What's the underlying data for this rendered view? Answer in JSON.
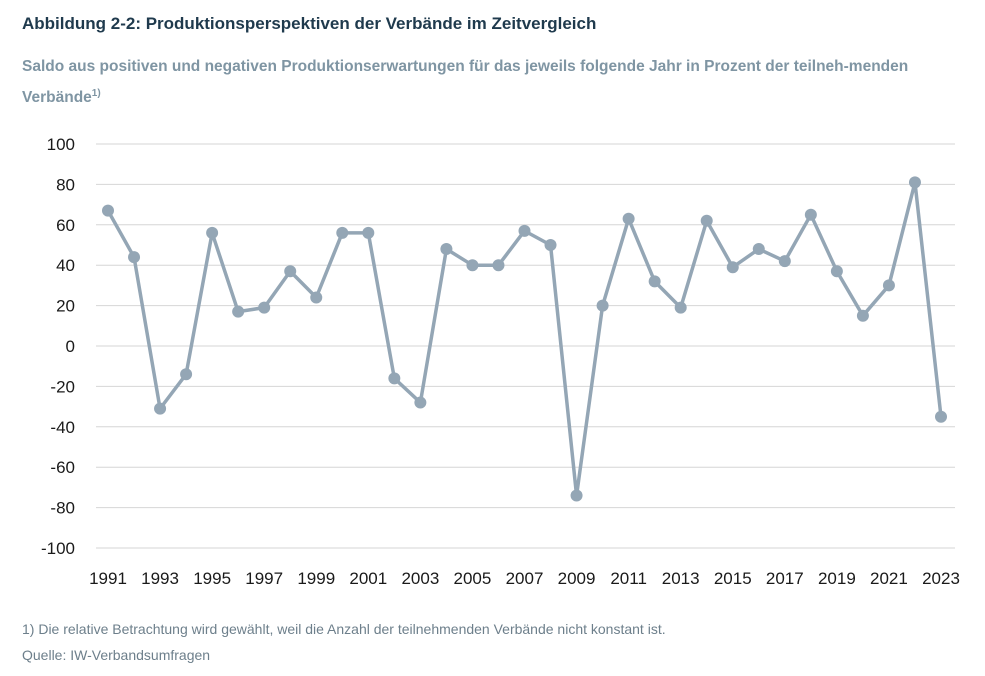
{
  "figure": {
    "title": "Abbildung 2-2: Produktionsperspektiven der Verbände im Zeitvergleich",
    "subtitle": "Saldo aus positiven und negativen Produktionserwartungen für das jeweils folgende Jahr in Prozent der teilneh-menden Verbände",
    "subtitle_sup": "1)",
    "footnote": "1) Die relative Betrachtung wird gewählt, weil die Anzahl der teilnehmenden Verbände nicht konstant ist.",
    "source": "Quelle: IW-Verbandsumfragen"
  },
  "chart_data": {
    "type": "line",
    "x": [
      1991,
      1992,
      1993,
      1994,
      1995,
      1996,
      1997,
      1998,
      1999,
      2000,
      2001,
      2002,
      2003,
      2004,
      2005,
      2006,
      2007,
      2008,
      2009,
      2010,
      2011,
      2012,
      2013,
      2014,
      2015,
      2016,
      2017,
      2018,
      2019,
      2020,
      2021,
      2022,
      2023
    ],
    "series": [
      {
        "values": [
          67,
          44,
          -31,
          -14,
          56,
          17,
          19,
          37,
          24,
          56,
          56,
          -16,
          -28,
          48,
          40,
          40,
          57,
          50,
          -74,
          20,
          63,
          32,
          19,
          62,
          39,
          48,
          42,
          65,
          37,
          15,
          30,
          81,
          -35
        ]
      }
    ],
    "x_tick_labels": [
      "1991",
      "1993",
      "1995",
      "1997",
      "1999",
      "2001",
      "2003",
      "2005",
      "2007",
      "2009",
      "2011",
      "2013",
      "2015",
      "2017",
      "2019",
      "2021",
      "2023"
    ],
    "y_tick_labels": [
      "100",
      "80",
      "60",
      "40",
      "20",
      "0",
      "-20",
      "-40",
      "-60",
      "-80",
      "-100"
    ],
    "ylim": [
      -100,
      100
    ],
    "grid": true,
    "line_color": "#94a6b5",
    "grid_color": "#d6d6d6"
  }
}
